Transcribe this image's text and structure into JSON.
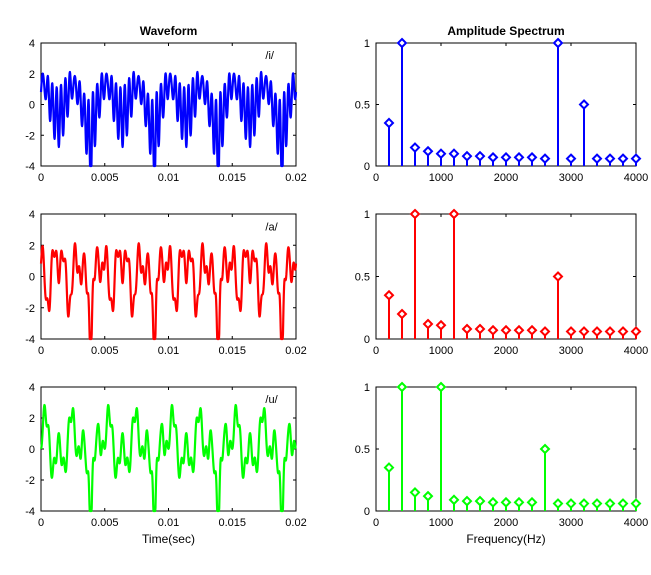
{
  "chart_data": [
    {
      "type": "line",
      "title": "Waveform",
      "annotation": "/i/",
      "xlabel": "",
      "ylabel": "",
      "xlim": [
        0,
        0.02
      ],
      "ylim": [
        -4,
        4
      ],
      "xticks": [
        "0",
        "0.005",
        "0.01",
        "0.015",
        "0.02"
      ],
      "yticks": [
        "4",
        "2",
        "0",
        "-2",
        "-4"
      ],
      "color": "#0000ff",
      "signal": {
        "f0_hz": 200,
        "harmonics": [
          {
            "freq": 200,
            "amp": 0.35
          },
          {
            "freq": 400,
            "amp": 1.0
          },
          {
            "freq": 600,
            "amp": 0.15
          },
          {
            "freq": 800,
            "amp": 0.12
          },
          {
            "freq": 1000,
            "amp": 0.1
          },
          {
            "freq": 1200,
            "amp": 0.1
          },
          {
            "freq": 1400,
            "amp": 0.08
          },
          {
            "freq": 1600,
            "amp": 0.08
          },
          {
            "freq": 1800,
            "amp": 0.07
          },
          {
            "freq": 2000,
            "amp": 0.07
          },
          {
            "freq": 2200,
            "amp": 0.07
          },
          {
            "freq": 2400,
            "amp": 0.07
          },
          {
            "freq": 2600,
            "amp": 0.06
          },
          {
            "freq": 2800,
            "amp": 1.0
          },
          {
            "freq": 3000,
            "amp": 0.06
          },
          {
            "freq": 3200,
            "amp": 0.5
          },
          {
            "freq": 3400,
            "amp": 0.06
          },
          {
            "freq": 3600,
            "amp": 0.06
          },
          {
            "freq": 3800,
            "amp": 0.06
          },
          {
            "freq": 4000,
            "amp": 0.06
          }
        ]
      }
    },
    {
      "type": "stem",
      "title": "Amplitude Spectrum",
      "xlabel": "",
      "ylabel": "",
      "xlim": [
        0,
        4000
      ],
      "ylim": [
        0,
        1
      ],
      "xticks": [
        "0",
        "1000",
        "2000",
        "3000",
        "4000"
      ],
      "yticks": [
        "1",
        "0.5",
        "0"
      ],
      "color": "#0000ff",
      "x": [
        200,
        400,
        600,
        800,
        1000,
        1200,
        1400,
        1600,
        1800,
        2000,
        2200,
        2400,
        2600,
        2800,
        3000,
        3200,
        3400,
        3600,
        3800,
        4000
      ],
      "values": [
        0.35,
        1.0,
        0.15,
        0.12,
        0.1,
        0.1,
        0.08,
        0.08,
        0.07,
        0.07,
        0.07,
        0.07,
        0.06,
        1.0,
        0.06,
        0.5,
        0.06,
        0.06,
        0.06,
        0.06
      ]
    },
    {
      "type": "line",
      "title": "",
      "annotation": "/a/",
      "xlabel": "",
      "ylabel": "",
      "xlim": [
        0,
        0.02
      ],
      "ylim": [
        -4,
        4
      ],
      "xticks": [
        "0",
        "0.005",
        "0.01",
        "0.015",
        "0.02"
      ],
      "yticks": [
        "4",
        "2",
        "0",
        "-2",
        "-4"
      ],
      "color": "#ff0000",
      "signal": {
        "f0_hz": 200,
        "harmonics": [
          {
            "freq": 200,
            "amp": 0.35
          },
          {
            "freq": 400,
            "amp": 0.2
          },
          {
            "freq": 600,
            "amp": 1.0
          },
          {
            "freq": 800,
            "amp": 0.12
          },
          {
            "freq": 1000,
            "amp": 0.11
          },
          {
            "freq": 1200,
            "amp": 1.0
          },
          {
            "freq": 1400,
            "amp": 0.08
          },
          {
            "freq": 1600,
            "amp": 0.08
          },
          {
            "freq": 1800,
            "amp": 0.07
          },
          {
            "freq": 2000,
            "amp": 0.07
          },
          {
            "freq": 2200,
            "amp": 0.07
          },
          {
            "freq": 2400,
            "amp": 0.07
          },
          {
            "freq": 2600,
            "amp": 0.06
          },
          {
            "freq": 2800,
            "amp": 0.5
          },
          {
            "freq": 3000,
            "amp": 0.06
          },
          {
            "freq": 3200,
            "amp": 0.06
          },
          {
            "freq": 3400,
            "amp": 0.06
          },
          {
            "freq": 3600,
            "amp": 0.06
          },
          {
            "freq": 3800,
            "amp": 0.06
          },
          {
            "freq": 4000,
            "amp": 0.06
          }
        ]
      }
    },
    {
      "type": "stem",
      "title": "",
      "xlabel": "",
      "ylabel": "",
      "xlim": [
        0,
        4000
      ],
      "ylim": [
        0,
        1
      ],
      "xticks": [
        "0",
        "1000",
        "2000",
        "3000",
        "4000"
      ],
      "yticks": [
        "1",
        "0.5",
        "0"
      ],
      "color": "#ff0000",
      "x": [
        200,
        400,
        600,
        800,
        1000,
        1200,
        1400,
        1600,
        1800,
        2000,
        2200,
        2400,
        2600,
        2800,
        3000,
        3200,
        3400,
        3600,
        3800,
        4000
      ],
      "values": [
        0.35,
        0.2,
        1.0,
        0.12,
        0.11,
        1.0,
        0.08,
        0.08,
        0.07,
        0.07,
        0.07,
        0.07,
        0.06,
        0.5,
        0.06,
        0.06,
        0.06,
        0.06,
        0.06,
        0.06
      ]
    },
    {
      "type": "line",
      "title": "",
      "annotation": "/u/",
      "xlabel": "Time(sec)",
      "ylabel": "",
      "xlim": [
        0,
        0.02
      ],
      "ylim": [
        -4,
        4
      ],
      "xticks": [
        "0",
        "0.005",
        "0.01",
        "0.015",
        "0.02"
      ],
      "yticks": [
        "4",
        "2",
        "0",
        "-2",
        "-4"
      ],
      "color": "#00ff00",
      "signal": {
        "f0_hz": 200,
        "harmonics": [
          {
            "freq": 200,
            "amp": 0.35
          },
          {
            "freq": 400,
            "amp": 1.0
          },
          {
            "freq": 600,
            "amp": 0.15
          },
          {
            "freq": 800,
            "amp": 0.12
          },
          {
            "freq": 1000,
            "amp": 1.0
          },
          {
            "freq": 1200,
            "amp": 0.09
          },
          {
            "freq": 1400,
            "amp": 0.08
          },
          {
            "freq": 1600,
            "amp": 0.08
          },
          {
            "freq": 1800,
            "amp": 0.07
          },
          {
            "freq": 2000,
            "amp": 0.07
          },
          {
            "freq": 2200,
            "amp": 0.07
          },
          {
            "freq": 2400,
            "amp": 0.07
          },
          {
            "freq": 2600,
            "amp": 0.5
          },
          {
            "freq": 2800,
            "amp": 0.06
          },
          {
            "freq": 3000,
            "amp": 0.06
          },
          {
            "freq": 3200,
            "amp": 0.06
          },
          {
            "freq": 3400,
            "amp": 0.06
          },
          {
            "freq": 3600,
            "amp": 0.06
          },
          {
            "freq": 3800,
            "amp": 0.06
          },
          {
            "freq": 4000,
            "amp": 0.06
          }
        ]
      }
    },
    {
      "type": "stem",
      "title": "",
      "xlabel": "Frequency(Hz)",
      "ylabel": "",
      "xlim": [
        0,
        4000
      ],
      "ylim": [
        0,
        1
      ],
      "xticks": [
        "0",
        "1000",
        "2000",
        "3000",
        "4000"
      ],
      "yticks": [
        "1",
        "0.5",
        "0"
      ],
      "color": "#00ff00",
      "x": [
        200,
        400,
        600,
        800,
        1000,
        1200,
        1400,
        1600,
        1800,
        2000,
        2200,
        2400,
        2600,
        2800,
        3000,
        3200,
        3400,
        3600,
        3800,
        4000
      ],
      "values": [
        0.35,
        1.0,
        0.15,
        0.12,
        1.0,
        0.09,
        0.08,
        0.08,
        0.07,
        0.07,
        0.07,
        0.07,
        0.5,
        0.06,
        0.06,
        0.06,
        0.06,
        0.06,
        0.06,
        0.06
      ]
    }
  ]
}
